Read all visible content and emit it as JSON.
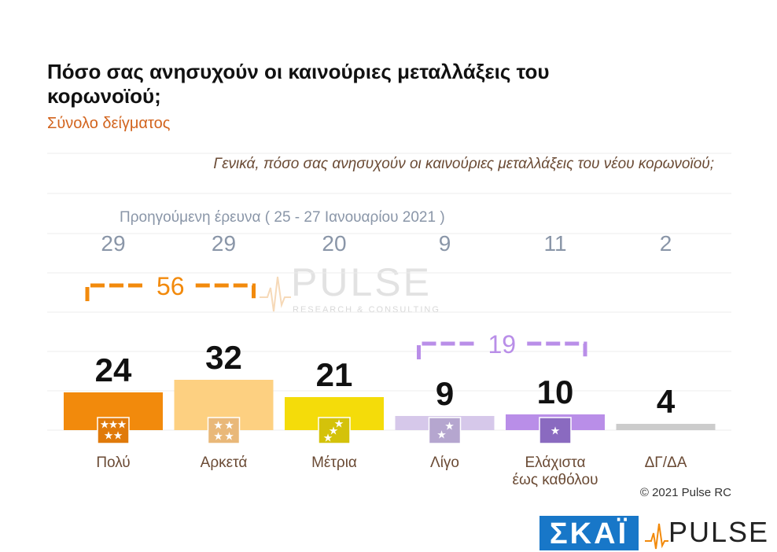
{
  "header": {
    "title": "Πόσο σας ανησυχούν οι καινούριες μεταλλάξεις του κορωνοϊού;",
    "subtitle": "Σύνολο δείγματος",
    "question": "Γενικά, πόσο σας ανησυχούν οι καινούριες μεταλλάξεις του νέου κορωνοϊού;"
  },
  "chart_data": {
    "type": "bar",
    "categories": [
      "Πολύ",
      "Αρκετά",
      "Μέτρια",
      "Λίγο",
      "Ελάχιστα έως καθόλου",
      "ΔΓ/ΔΑ"
    ],
    "category_lines": [
      [
        "Πολύ"
      ],
      [
        "Αρκετά"
      ],
      [
        "Μέτρια"
      ],
      [
        "Λίγο"
      ],
      [
        "Ελάχιστα",
        "έως καθόλου"
      ],
      [
        "ΔΓ/ΔΑ"
      ]
    ],
    "values": [
      24,
      32,
      21,
      9,
      10,
      4
    ],
    "previous_label": "Προηγούμενη έρευνα  ( 25 - 27  Ιανουαρίου  2021 )",
    "previous_values": [
      29,
      29,
      20,
      9,
      11,
      2
    ],
    "colors": [
      "#f28a0c",
      "#fdd081",
      "#f4dc0a",
      "#d6c8ea",
      "#b98ee8",
      "#cccccc"
    ],
    "badge_colors": [
      "#e07a0a",
      "#e9b879",
      "#d4c20a",
      "#b5a6cf",
      "#8a6ac0"
    ],
    "groups": [
      {
        "value": "56",
        "from": 0,
        "to": 1,
        "color": "#f28a0c"
      },
      {
        "value": "19",
        "from": 3,
        "to": 4,
        "color": "#b98ee8"
      }
    ],
    "ylim": [
      0,
      100
    ]
  },
  "watermark": {
    "text": "PULSE",
    "sub": "RESEARCH & CONSULTING"
  },
  "footer": {
    "copyright": "© 2021 Pulse RC",
    "logo_skai": "ΣΚΑΪ",
    "logo_pulse": "PULSE"
  }
}
